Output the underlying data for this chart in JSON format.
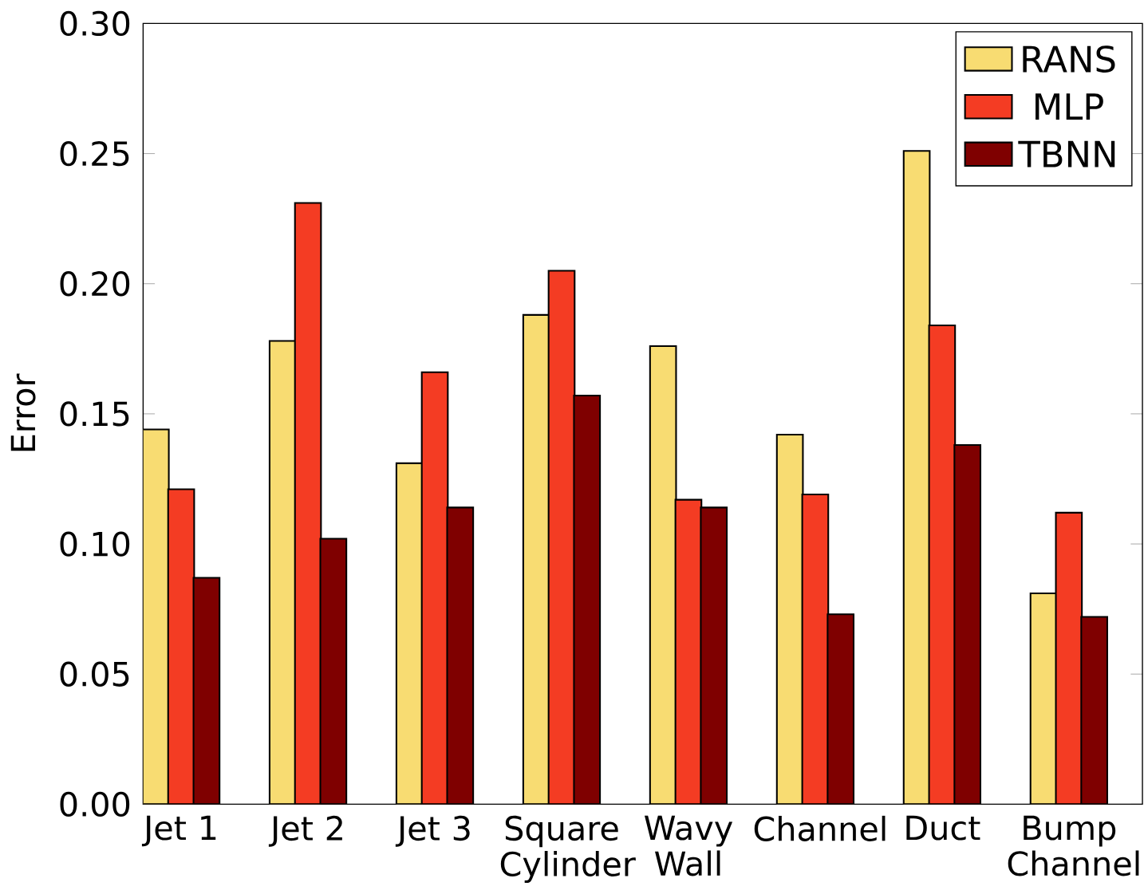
{
  "chart_data": {
    "type": "bar",
    "ylabel": "Error",
    "categories": [
      "Jet 1",
      "Jet 2",
      "Jet 3",
      "Square Cylinder",
      "Wavy Wall",
      "Channel",
      "Duct",
      "Bump Channel"
    ],
    "series": [
      {
        "name": "RANS",
        "color": "#f8dc72",
        "values": [
          0.144,
          0.178,
          0.131,
          0.188,
          0.176,
          0.142,
          0.251,
          0.081
        ]
      },
      {
        "name": "MLP",
        "color": "#f43c23",
        "values": [
          0.121,
          0.231,
          0.166,
          0.205,
          0.117,
          0.119,
          0.184,
          0.112
        ]
      },
      {
        "name": "TBNN",
        "color": "#7f0000",
        "values": [
          0.087,
          0.102,
          0.114,
          0.157,
          0.114,
          0.073,
          0.138,
          0.072
        ]
      }
    ],
    "ylim": [
      0,
      0.3
    ],
    "yticks": [
      {
        "value": 0,
        "label": "0.00"
      },
      0.05,
      {
        "value": 0.1,
        "label": "0.10"
      },
      0.15,
      {
        "value": 0.2,
        "label": "0.20"
      },
      0.25,
      {
        "value": 0.3,
        "label": "0.30"
      }
    ],
    "legend": "top right",
    "grid": false
  }
}
